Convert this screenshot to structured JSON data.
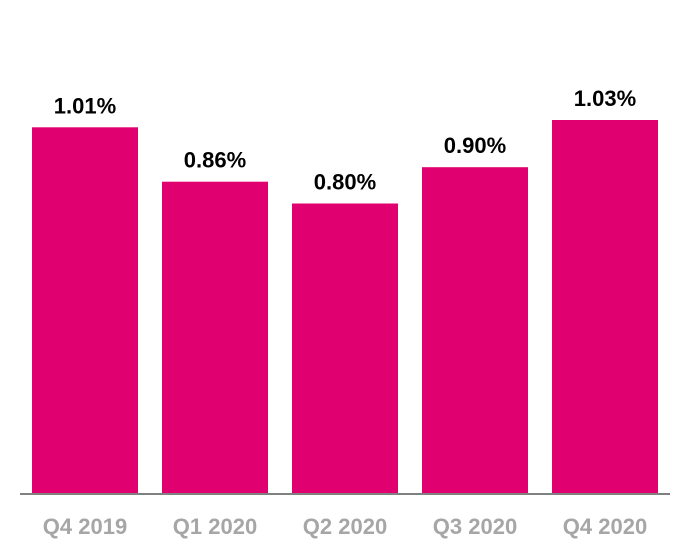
{
  "chart_data": {
    "type": "bar",
    "categories": [
      "Q4 2019",
      "Q1 2020",
      "Q2 2020",
      "Q3 2020",
      "Q4 2020"
    ],
    "values": [
      1.01,
      0.86,
      0.8,
      0.9,
      1.03
    ],
    "data_labels": [
      "1.01%",
      "0.86%",
      "0.80%",
      "0.90%",
      "1.03%"
    ],
    "title": "",
    "xlabel": "",
    "ylabel": "",
    "ylim": [
      0,
      1.03
    ],
    "grid": false,
    "legend": "none",
    "bar_color": "#e0006f",
    "axis_color": "#808080",
    "tick_label_color": "#a6a6a6",
    "data_label_color": "#000000"
  }
}
